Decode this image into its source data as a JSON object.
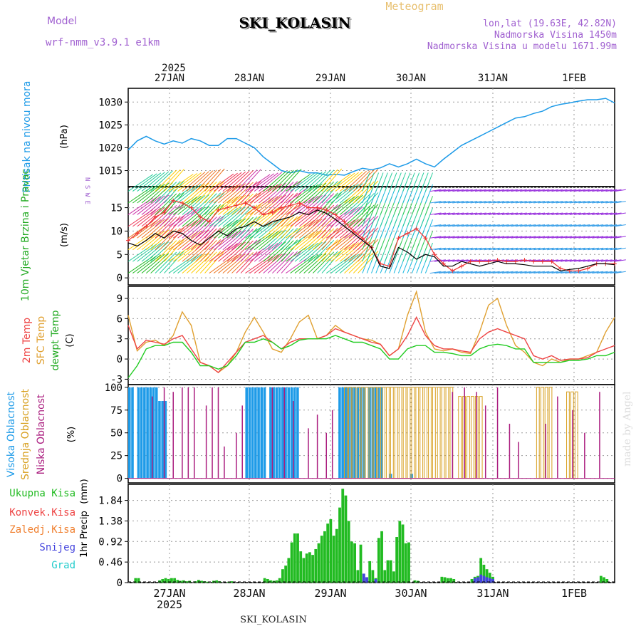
{
  "header": {
    "model_label": "Model",
    "model_name": "wrf-nmm_v3.9.1 e1km",
    "station": "SKI_KOLASIN",
    "product": "Meteogram",
    "lonlat": "lon,lat (19.63E, 42.82N)",
    "elevation": "Nadmorska Visina 1450m",
    "model_elevation": "Nadmorska Visina u modelu 1671.99m"
  },
  "footer": {
    "station": "SKI_KOLASIN",
    "credit": "made by Angel"
  },
  "time_axis": {
    "year": "2025",
    "days": [
      "27JAN",
      "28JAN",
      "29JAN",
      "30JAN",
      "31JAN",
      "1FEB"
    ],
    "hours_range": [
      0,
      162
    ]
  },
  "colors": {
    "pressure": "#1e9be8",
    "temp2m": "#ee4444",
    "sfc": "#e0a030",
    "dew": "#22cc22",
    "cloud_high": "#1e9be8",
    "cloud_mid": "#d8a020",
    "cloud_low": "#aa1c7e",
    "precip_total": "#22bb22",
    "precip_conv": "#ee4444",
    "precip_frozen": "#f08030",
    "precip_snow": "#4444dd",
    "precip_grad": "#22cccc",
    "wind_label": "#22aa22"
  },
  "chart_data": [
    {
      "type": "line",
      "panel": "pressure",
      "ylabel": "Pritisak na nivou mora",
      "unit": "(hPa)",
      "yticks": [
        1015,
        1020,
        1025,
        1030
      ],
      "ylim": [
        1011.5,
        1033
      ],
      "x": [
        0,
        3,
        6,
        9,
        12,
        15,
        18,
        21,
        24,
        27,
        30,
        33,
        36,
        39,
        42,
        45,
        48,
        51,
        54,
        57,
        60,
        63,
        66,
        69,
        72,
        75,
        78,
        81,
        84,
        87,
        90,
        93,
        96,
        99,
        102,
        105,
        108,
        111,
        114,
        117,
        120,
        123,
        126,
        129,
        132,
        135,
        138,
        141,
        144,
        147,
        150,
        153,
        156,
        159,
        162
      ],
      "series": [
        {
          "values": [
            1019.5,
            1021.5,
            1022.5,
            1021.5,
            1020.8,
            1021.5,
            1021,
            1022,
            1021.5,
            1020.5,
            1020.5,
            1022,
            1022,
            1021,
            1020,
            1018,
            1016.5,
            1015,
            1014.5,
            1015,
            1014.5,
            1014.5,
            1014,
            1014.2,
            1014,
            1014.8,
            1015.5,
            1015.2,
            1015.6,
            1016.5,
            1015.8,
            1016.5,
            1017.5,
            1016.5,
            1015.8,
            1017.5,
            1019,
            1020.5,
            1021.5,
            1022.5,
            1023.5,
            1024.5,
            1025.5,
            1026.5,
            1026.8,
            1027.5,
            1028,
            1029,
            1029.5,
            1029.8,
            1030.2,
            1030.5,
            1030.5,
            1030.8,
            1029.8
          ]
        }
      ]
    },
    {
      "type": "line",
      "panel": "wind",
      "ylabel": "10m Vjetar Brzina i Pravac",
      "unit": "(m/s)",
      "compass": "N S W E",
      "yticks": [
        0,
        5,
        10,
        15
      ],
      "ylim": [
        -1.5,
        19.5
      ],
      "x": [
        0,
        3,
        6,
        9,
        12,
        15,
        18,
        21,
        24,
        27,
        30,
        33,
        36,
        39,
        42,
        45,
        48,
        51,
        54,
        57,
        60,
        63,
        66,
        69,
        72,
        75,
        78,
        81,
        84,
        87,
        90,
        93,
        96,
        99,
        102,
        105,
        108,
        111,
        114,
        117,
        120,
        123,
        126,
        129,
        132,
        135,
        138,
        141,
        144,
        147,
        150,
        153,
        156,
        159,
        162
      ],
      "series": [
        {
          "name": "black",
          "values": [
            7.5,
            6.8,
            8,
            9.5,
            8.5,
            10,
            9.5,
            8,
            7,
            8.5,
            10,
            9,
            10.5,
            11,
            12,
            11,
            12,
            12.5,
            13,
            14,
            13.5,
            14.5,
            13.8,
            12.5,
            11,
            9.5,
            8,
            6.5,
            2.5,
            2,
            6.5,
            5.5,
            4,
            5,
            4.5,
            2.5,
            2.5,
            3.5,
            3,
            2.5,
            3,
            3.5,
            3,
            3,
            2.8,
            2.5,
            2.5,
            2.5,
            1.5,
            1.8,
            2,
            2.5,
            3,
            3,
            2.8
          ]
        },
        {
          "name": "red",
          "values": [
            8,
            9.5,
            11,
            13,
            14,
            16.5,
            16,
            15,
            13,
            12,
            14.5,
            15,
            15.5,
            16,
            15,
            13.5,
            14,
            15,
            15.5,
            16,
            15,
            15,
            14.5,
            13.5,
            12,
            10,
            8.5,
            6.5,
            3,
            2.5,
            8.5,
            9.5,
            10.5,
            8.5,
            5,
            3,
            1.5,
            2.5,
            3.5,
            3.5,
            3.5,
            3.8,
            3.5,
            3.5,
            3.8,
            3.5,
            3.5,
            3.5,
            2,
            1.5,
            1.5,
            2,
            3,
            3,
            3
          ]
        }
      ]
    },
    {
      "type": "line",
      "panel": "temperature",
      "ylabel": [
        "2m Temp",
        "SFC Temp",
        "dewpt Temp"
      ],
      "unit": "(C)",
      "yticks": [
        -3,
        0,
        3,
        6,
        9
      ],
      "ylim": [
        -3.8,
        10.8
      ],
      "x": [
        0,
        3,
        6,
        9,
        12,
        15,
        18,
        21,
        24,
        27,
        30,
        33,
        36,
        39,
        42,
        45,
        48,
        51,
        54,
        57,
        60,
        63,
        66,
        69,
        72,
        75,
        78,
        81,
        84,
        87,
        90,
        93,
        96,
        99,
        102,
        105,
        108,
        111,
        114,
        117,
        120,
        123,
        126,
        129,
        132,
        135,
        138,
        141,
        144,
        147,
        150,
        153,
        156,
        159,
        162
      ],
      "series": [
        {
          "name": "2m Temp",
          "values": [
            5,
            1.5,
            2.8,
            2.5,
            2.2,
            3,
            3.5,
            1.5,
            -0.5,
            -1,
            -2,
            -0.5,
            1,
            2.5,
            3,
            3.5,
            2.5,
            1.5,
            2.5,
            3,
            3,
            3,
            3.5,
            4.5,
            4,
            3.5,
            3,
            2.5,
            2.2,
            0.5,
            1.5,
            3.5,
            6.2,
            3.5,
            2,
            1.5,
            1.5,
            1.2,
            1,
            3,
            4,
            4.5,
            4,
            3.5,
            3,
            0.5,
            0,
            0.5,
            -0.2,
            0,
            0,
            0.2,
            1,
            1.5,
            2
          ]
        },
        {
          "name": "SFC Temp",
          "values": [
            6.5,
            1.2,
            2.5,
            2.8,
            2,
            3.5,
            7,
            5,
            -0.5,
            -1,
            -2,
            -1,
            1,
            4,
            6.2,
            4,
            1.5,
            1,
            3,
            5.5,
            6.5,
            3,
            3.5,
            5,
            4,
            3.5,
            3,
            2.8,
            2.2,
            0.5,
            1.5,
            6.5,
            10,
            4,
            1.5,
            1.2,
            1.5,
            1,
            0.8,
            4,
            8,
            9,
            5,
            2,
            1,
            -0.5,
            -1,
            0,
            -0.5,
            0,
            0,
            0.5,
            1,
            4,
            6.2
          ]
        },
        {
          "name": "dewpt Temp",
          "values": [
            -2.8,
            -1,
            1.5,
            2,
            2,
            2.5,
            2.5,
            1,
            -1,
            -1,
            -1.5,
            -1,
            0.5,
            2.5,
            2.5,
            3,
            2.5,
            1.5,
            2,
            2.8,
            3,
            3,
            3,
            3.5,
            3,
            2.5,
            2.5,
            2,
            1.5,
            0,
            0,
            1.5,
            2,
            2,
            1,
            1,
            0.8,
            0.5,
            0.5,
            1.5,
            2,
            2.2,
            2,
            1.5,
            1.5,
            -0.5,
            -0.5,
            -0.5,
            -0.5,
            -0.2,
            -0.2,
            0,
            0.5,
            0.5,
            1
          ]
        }
      ]
    },
    {
      "type": "bar",
      "panel": "cloud",
      "ylabel": [
        "Visoka Oblacnost",
        "Srednja Oblacnost",
        "Niska Oblacnost"
      ],
      "unit": "(%)",
      "yticks": [
        0,
        25,
        50,
        75,
        100
      ],
      "ylim": [
        -5,
        103
      ],
      "series": [
        {
          "name": "Visoka Oblacnost",
          "ranges": [
            [
              0,
              10,
              100
            ],
            [
              10,
              14,
              85
            ],
            [
              39,
              57,
              100
            ],
            [
              70,
              85,
              100
            ],
            [
              87,
              88,
              5
            ],
            [
              94,
              95,
              5
            ]
          ]
        },
        {
          "name": "Srednja Oblacnost",
          "ranges": [
            [
              72,
              102,
              100
            ],
            [
              103,
              108,
              100
            ],
            [
              110,
              118,
              90
            ],
            [
              136,
              141,
              100
            ],
            [
              146,
              150,
              95
            ]
          ]
        },
        {
          "name": "Niska Oblacnost",
          "values_at": [
            [
              8,
              90
            ],
            [
              12,
              100
            ],
            [
              15,
              95
            ],
            [
              18,
              100
            ],
            [
              20,
              100
            ],
            [
              22,
              100
            ],
            [
              26,
              80
            ],
            [
              28,
              100
            ],
            [
              30,
              100
            ],
            [
              32,
              35
            ],
            [
              36,
              50
            ],
            [
              38,
              80
            ],
            [
              48,
              100
            ],
            [
              52,
              100
            ],
            [
              55,
              85
            ],
            [
              60,
              55
            ],
            [
              63,
              70
            ],
            [
              66,
              50
            ],
            [
              68,
              75
            ],
            [
              108,
              95
            ],
            [
              112,
              100
            ],
            [
              116,
              95
            ],
            [
              119,
              80
            ],
            [
              123,
              100
            ],
            [
              127,
              60
            ],
            [
              130,
              40
            ],
            [
              139,
              60
            ],
            [
              143,
              90
            ],
            [
              148,
              75
            ],
            [
              152,
              50
            ],
            [
              157,
              95
            ]
          ]
        }
      ]
    },
    {
      "type": "bar",
      "panel": "precipitation",
      "ylabel": "1hr Precip",
      "unit": "(mm)",
      "legend": [
        "Ukupna Kisa",
        "Konvek.Kisa",
        "Zaledj.Kisa",
        "Snijeg",
        "Grad"
      ],
      "yticks": [
        0,
        0.46,
        0.92,
        1.38,
        1.84
      ],
      "ytick_labels": [
        "0",
        "0.46",
        "0.92",
        "1.38",
        "1.84"
      ],
      "ylim": [
        0,
        2.2
      ],
      "x": [
        2,
        3,
        10,
        11,
        12,
        13,
        14,
        15,
        16,
        17,
        18,
        19,
        20,
        22,
        23,
        24,
        25,
        26,
        28,
        29,
        30,
        33,
        34,
        45,
        46,
        47,
        48,
        49,
        50,
        51,
        52,
        53,
        54,
        55,
        56,
        57,
        58,
        59,
        60,
        61,
        62,
        63,
        64,
        65,
        66,
        67,
        68,
        69,
        70,
        71,
        72,
        73,
        74,
        75,
        76,
        77,
        78,
        79,
        80,
        81,
        82,
        83,
        84,
        85,
        86,
        87,
        88,
        89,
        90,
        91,
        92,
        93,
        95,
        96,
        104,
        105,
        106,
        107,
        108,
        114,
        115,
        116,
        117,
        118,
        119,
        120,
        121,
        157,
        158,
        159
      ],
      "series": [
        {
          "name": "Ukupna Kisa",
          "values": [
            0.1,
            0.1,
            0.05,
            0.08,
            0.1,
            0.08,
            0.1,
            0.1,
            0.06,
            0.04,
            0.05,
            0.03,
            0.04,
            0.03,
            0.06,
            0.04,
            0.03,
            0.02,
            0.04,
            0.05,
            0.03,
            0.02,
            0.03,
            0.1,
            0.08,
            0.05,
            0.04,
            0.05,
            0.1,
            0.3,
            0.38,
            0.55,
            0.9,
            1.1,
            1.1,
            0.7,
            0.55,
            0.65,
            0.68,
            0.62,
            0.75,
            0.88,
            1.05,
            1.15,
            1.32,
            1.42,
            1.05,
            1.2,
            1.68,
            2.1,
            1.95,
            1.38,
            0.92,
            0.88,
            0.28,
            0.85,
            0.2,
            0.12,
            0.48,
            0.28,
            0.1,
            1.0,
            1.15,
            0.28,
            0.5,
            0.5,
            0.25,
            1.02,
            1.38,
            1.3,
            0.88,
            0.9,
            0.05,
            0.04,
            0.13,
            0.12,
            0.1,
            0.1,
            0.08,
            0.08,
            0.13,
            0.15,
            0.55,
            0.4,
            0.3,
            0.22,
            0.13,
            0.15,
            0.12,
            0.08
          ]
        },
        {
          "name": "Snijeg",
          "values": [
            0,
            0,
            0,
            0,
            0,
            0,
            0,
            0,
            0,
            0,
            0,
            0,
            0,
            0,
            0,
            0,
            0,
            0,
            0,
            0,
            0,
            0,
            0,
            0,
            0,
            0,
            0,
            0,
            0,
            0,
            0,
            0,
            0,
            0,
            0,
            0,
            0,
            0,
            0,
            0,
            0,
            0,
            0,
            0,
            0,
            0,
            0,
            0,
            0,
            0,
            0,
            0,
            0,
            0,
            0,
            0,
            0.2,
            0.12,
            0,
            0,
            0.08,
            0,
            0,
            0,
            0,
            0,
            0,
            0,
            0,
            0,
            0,
            0,
            0,
            0,
            0,
            0,
            0,
            0,
            0,
            0,
            0.1,
            0.12,
            0.18,
            0.15,
            0.12,
            0.1,
            0.08,
            0,
            0,
            0
          ]
        }
      ]
    }
  ]
}
